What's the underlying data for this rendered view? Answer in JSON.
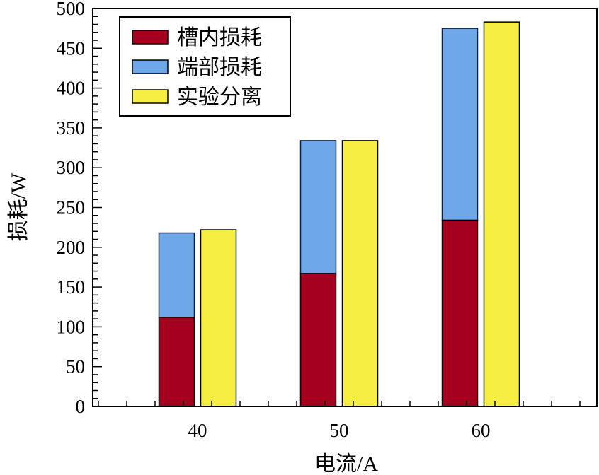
{
  "chart_data": {
    "type": "bar",
    "stacked_with_side_bar": true,
    "title": "",
    "xlabel": "电流/A",
    "ylabel": "损耗/W",
    "categories": [
      "40",
      "50",
      "60"
    ],
    "ylim": [
      0,
      500
    ],
    "yticks": [
      0,
      50,
      100,
      150,
      200,
      250,
      300,
      350,
      400,
      450,
      500
    ],
    "grid": false,
    "legend_position": "top-left",
    "series": [
      {
        "name": "槽内损耗",
        "color": "#a5001e",
        "stack": "computed",
        "values": [
          112,
          167,
          234
        ]
      },
      {
        "name": "端部损耗",
        "color": "#6ea8e8",
        "stack": "computed",
        "values": [
          106,
          167,
          241
        ]
      },
      {
        "name": "实验分离",
        "color": "#f5ef42",
        "stack": "experiment",
        "values": [
          222,
          334,
          483
        ]
      }
    ]
  },
  "legend": {
    "items": [
      {
        "label": "槽内损耗",
        "color": "#a5001e"
      },
      {
        "label": "端部损耗",
        "color": "#6ea8e8"
      },
      {
        "label": "实验分离",
        "color": "#f5ef42"
      }
    ]
  },
  "axes": {
    "x_title": "电流/A",
    "y_title": "损耗/W"
  }
}
